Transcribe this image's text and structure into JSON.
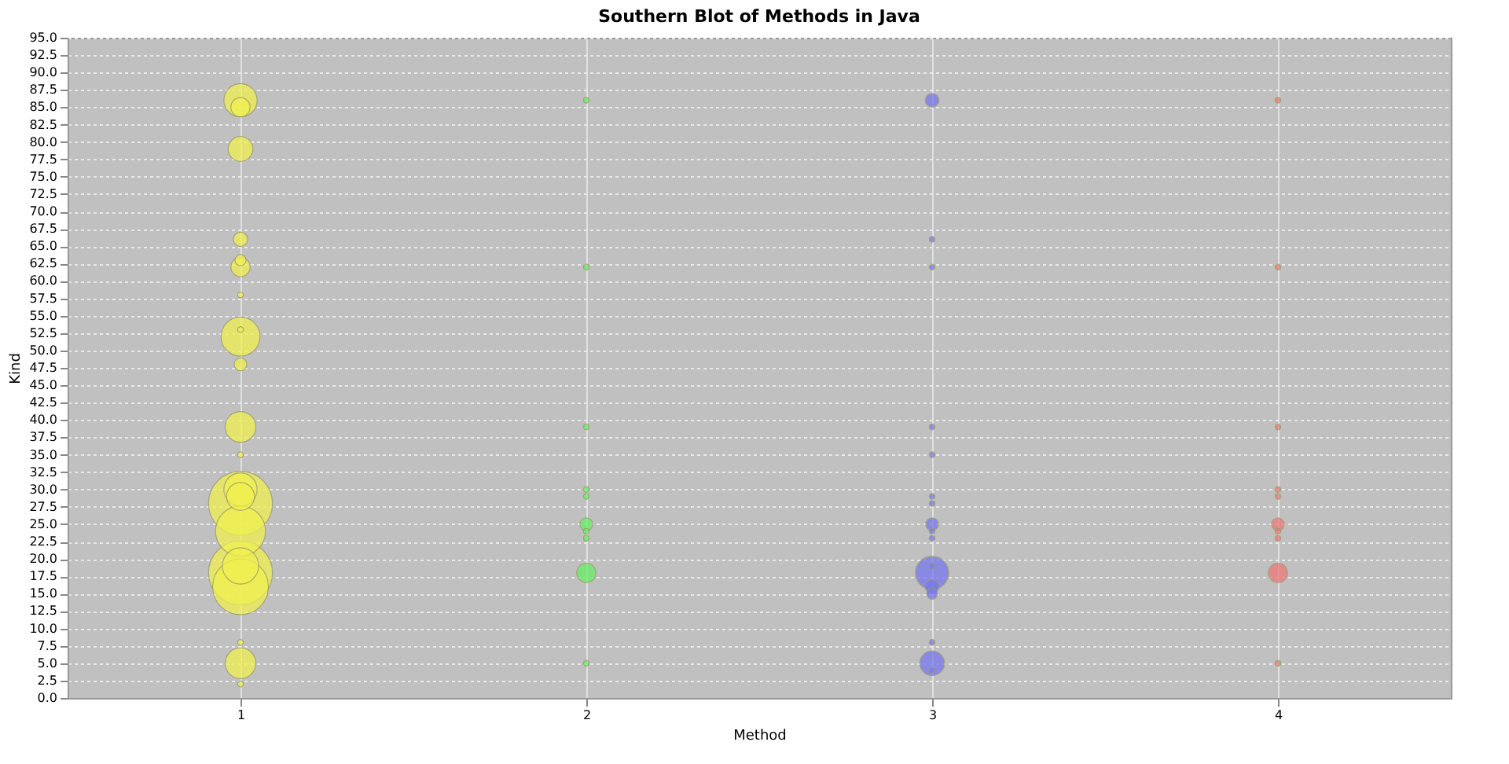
{
  "chart_data": {
    "type": "bubble",
    "title": "Southern Blot of Methods in Java",
    "xlabel": "Method",
    "ylabel": "Kind",
    "categories": [
      "1",
      "2",
      "3",
      "4"
    ],
    "ylim": [
      0,
      95
    ],
    "yticks": [
      {
        "value": 0,
        "label": "0.0"
      },
      {
        "value": 2.5,
        "label": "2.5"
      },
      {
        "value": 5,
        "label": "5.0"
      },
      {
        "value": 7.5,
        "label": "7.5"
      },
      {
        "value": 10,
        "label": "10.0"
      },
      {
        "value": 12.5,
        "label": "12.5"
      },
      {
        "value": 15,
        "label": "15.0"
      },
      {
        "value": 17.5,
        "label": "17.5"
      },
      {
        "value": 20,
        "label": "20.0"
      },
      {
        "value": 22.5,
        "label": "22.5"
      },
      {
        "value": 25,
        "label": "25.0"
      },
      {
        "value": 27.5,
        "label": "27.5"
      },
      {
        "value": 30,
        "label": "30.0"
      },
      {
        "value": 32.5,
        "label": "32.5"
      },
      {
        "value": 35,
        "label": "35.0"
      },
      {
        "value": 37.5,
        "label": "37.5"
      },
      {
        "value": 40,
        "label": "40.0"
      },
      {
        "value": 42.5,
        "label": "42.5"
      },
      {
        "value": 45,
        "label": "45.0"
      },
      {
        "value": 47.5,
        "label": "47.5"
      },
      {
        "value": 50,
        "label": "50.0"
      },
      {
        "value": 52.5,
        "label": "52.5"
      },
      {
        "value": 55,
        "label": "55.0"
      },
      {
        "value": 57.5,
        "label": "57.5"
      },
      {
        "value": 60,
        "label": "60.0"
      },
      {
        "value": 62.5,
        "label": "62.5"
      },
      {
        "value": 65,
        "label": "65.0"
      },
      {
        "value": 67.5,
        "label": "67.5"
      },
      {
        "value": 70,
        "label": "70.0"
      },
      {
        "value": 72.5,
        "label": "72.5"
      },
      {
        "value": 75,
        "label": "75.0"
      },
      {
        "value": 77.5,
        "label": "77.5"
      },
      {
        "value": 80,
        "label": "80.0"
      },
      {
        "value": 82.5,
        "label": "82.5"
      },
      {
        "value": 85,
        "label": "85.0"
      },
      {
        "value": 87.5,
        "label": "87.5"
      },
      {
        "value": 90,
        "label": "90.0"
      },
      {
        "value": 92.5,
        "label": "92.5"
      },
      {
        "value": 95,
        "label": "95.0"
      }
    ],
    "grid": true,
    "legend": false,
    "series": [
      {
        "color": "#f0f050",
        "x": [
          "1",
          "1",
          "1",
          "1",
          "1",
          "1",
          "1",
          "1",
          "1",
          "1",
          "1",
          "1",
          "1",
          "1",
          "1",
          "1",
          "1",
          "1",
          "1",
          "1",
          "1",
          "1"
        ],
        "values": [
          86,
          85,
          79,
          66,
          63,
          62,
          58,
          52,
          53,
          48,
          39,
          35,
          28,
          30,
          29,
          24,
          18,
          16,
          19,
          8,
          5,
          2
        ],
        "sizes": [
          0.27,
          0.09,
          0.15,
          0.05,
          0.03,
          0.09,
          0.008,
          0.37,
          0.008,
          0.04,
          0.23,
          0.008,
          1,
          0.27,
          0.19,
          0.61,
          1,
          0.76,
          0.32,
          0.008,
          0.23,
          0.008
        ]
      },
      {
        "color": "#66ee66",
        "x": [
          "2",
          "2",
          "2",
          "2",
          "2",
          "2",
          "2",
          "2",
          "2",
          "2"
        ],
        "values": [
          86,
          62,
          39,
          30,
          29,
          25,
          24,
          23,
          18,
          5
        ],
        "sizes": [
          0.008,
          0.008,
          0.008,
          0.008,
          0.008,
          0.04,
          0.008,
          0.008,
          0.09,
          0.008
        ]
      },
      {
        "color": "#7777ee",
        "x": [
          "3",
          "3",
          "3",
          "3",
          "3",
          "3",
          "3",
          "3",
          "3",
          "3",
          "3",
          "3",
          "3",
          "3",
          "3",
          "3",
          "3"
        ],
        "values": [
          86,
          66,
          62,
          39,
          35,
          29,
          28,
          25,
          24,
          23,
          18,
          19,
          16,
          15,
          8,
          5,
          4
        ],
        "sizes": [
          0.047,
          0.008,
          0.008,
          0.008,
          0.008,
          0.008,
          0.008,
          0.04,
          0.008,
          0.008,
          0.27,
          0.008,
          0.047,
          0.03,
          0.008,
          0.15,
          0.008
        ]
      },
      {
        "color": "#ee7777",
        "x": [
          "4",
          "4",
          "4",
          "4",
          "4",
          "4",
          "4",
          "4",
          "4",
          "4"
        ],
        "values": [
          86,
          62,
          39,
          30,
          29,
          25,
          24,
          23,
          18,
          5
        ],
        "sizes": [
          0.008,
          0.008,
          0.008,
          0.008,
          0.008,
          0.04,
          0.008,
          0.008,
          0.09,
          0.008
        ]
      }
    ]
  }
}
